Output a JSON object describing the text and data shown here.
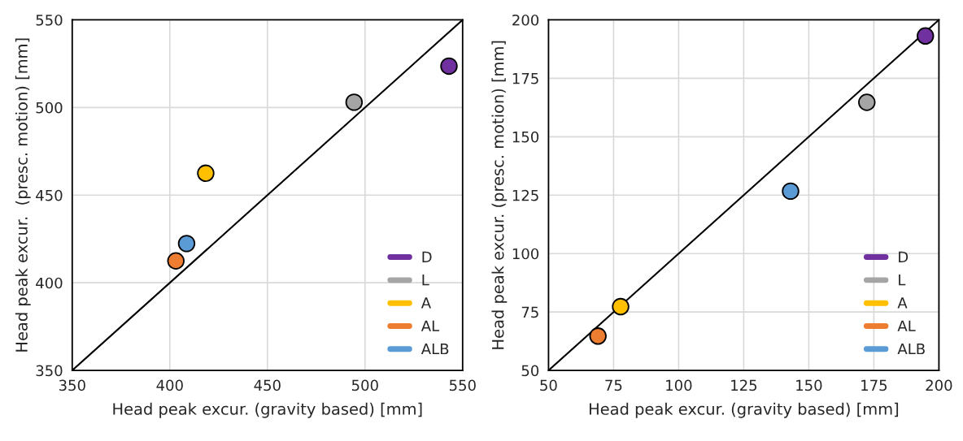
{
  "chart_data": [
    {
      "type": "scatter",
      "xlabel": "Head peak excur. (gravity based) [mm]",
      "ylabel": "Head peak excur.  (presc. motion) [mm]",
      "xlim": [
        350,
        550
      ],
      "ylim": [
        350,
        550
      ],
      "xticks": [
        350,
        400,
        450,
        500,
        550
      ],
      "yticks": [
        350,
        400,
        450,
        500,
        550
      ],
      "grid": true,
      "legend": "bottom right",
      "marker": "circle",
      "series": [
        {
          "type": "line",
          "x": [
            350,
            550
          ],
          "values": [
            350,
            550
          ],
          "color": "#000000",
          "marker": "none"
        },
        {
          "name": "D",
          "color": "#7030a0",
          "x": [
            543
          ],
          "values": [
            523.6
          ]
        },
        {
          "name": "L",
          "color": "#a5a5a5",
          "x": [
            494.4
          ],
          "values": [
            503
          ]
        },
        {
          "name": "A",
          "color": "#ffc000",
          "x": [
            418.4
          ],
          "values": [
            462.5
          ]
        },
        {
          "name": "AL",
          "color": "#ed7d31",
          "x": [
            403.1
          ],
          "values": [
            412.5
          ]
        },
        {
          "name": "ALB",
          "color": "#5b9bd5",
          "x": [
            408.6
          ],
          "values": [
            422.4
          ]
        }
      ]
    },
    {
      "type": "scatter",
      "xlabel": "Head peak excur. (gravity based) [mm]",
      "ylabel": "Head peak excur. (presc. motion) [mm]",
      "xlim": [
        50,
        200
      ],
      "ylim": [
        50,
        200
      ],
      "xticks": [
        50,
        75,
        100,
        125,
        150,
        175,
        200
      ],
      "yticks": [
        50,
        75,
        100,
        125,
        150,
        175,
        200
      ],
      "grid": true,
      "legend": "bottom right",
      "marker": "circle",
      "series": [
        {
          "type": "line",
          "x": [
            50,
            200
          ],
          "values": [
            50,
            200
          ],
          "color": "#000000",
          "marker": "none"
        },
        {
          "name": "D",
          "color": "#7030a0",
          "x": [
            194.8
          ],
          "values": [
            193.1
          ]
        },
        {
          "name": "L",
          "color": "#a5a5a5",
          "x": [
            172.3
          ],
          "values": [
            164.7
          ]
        },
        {
          "name": "A",
          "color": "#ffc000",
          "x": [
            77.7
          ],
          "values": [
            77.3
          ]
        },
        {
          "name": "AL",
          "color": "#ed7d31",
          "x": [
            69.0
          ],
          "values": [
            64.7
          ]
        },
        {
          "name": "ALB",
          "color": "#5b9bd5",
          "x": [
            143.0
          ],
          "values": [
            126.7
          ]
        }
      ]
    }
  ]
}
